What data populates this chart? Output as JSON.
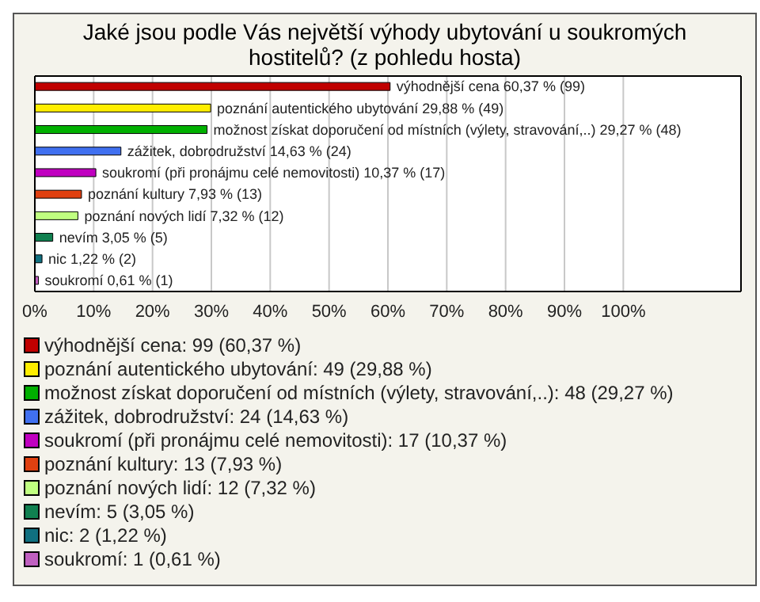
{
  "chart_data": {
    "type": "bar",
    "orientation": "horizontal",
    "stacked": true,
    "title": "Jaké jsou podle Vás největší výhody ubytování u soukromých hostitelů? (z pohledu hosta)",
    "categories": [
      null,
      null,
      null,
      null,
      null,
      null,
      null,
      null,
      null,
      null
    ],
    "series": [
      {
        "name": "výhodnější cena: 99 (60,37 %)",
        "color": "#c00000",
        "values": [
          60.37,
          null,
          null,
          null,
          null,
          null,
          null,
          null,
          null,
          null
        ],
        "value_labels": [
          "výhodnější cena 60,37 % (99)",
          null,
          null,
          null,
          null,
          null,
          null,
          null,
          null,
          null
        ]
      },
      {
        "name": "poznání autentického ubytování: 49 (29,88 %)",
        "color": "#ffee00",
        "values": [
          null,
          29.88,
          null,
          null,
          null,
          null,
          null,
          null,
          null,
          null
        ],
        "value_labels": [
          null,
          "poznání autentického ubytování 29,88 % (49)",
          null,
          null,
          null,
          null,
          null,
          null,
          null,
          null
        ]
      },
      {
        "name": "možnost získat doporučení od místních (výlety, stravování,..): 48 (29,27 %)",
        "color": "#00b000",
        "values": [
          null,
          null,
          29.27,
          null,
          null,
          null,
          null,
          null,
          null,
          null
        ],
        "value_labels": [
          null,
          null,
          "možnost získat doporučení od místních (výlety, stravování,..) 29,27 % (48)",
          null,
          null,
          null,
          null,
          null,
          null,
          null
        ]
      },
      {
        "name": "zážitek, dobrodružství: 24 (14,63 %)",
        "color": "#4070f0",
        "values": [
          null,
          null,
          null,
          14.63,
          null,
          null,
          null,
          null,
          null,
          null
        ],
        "value_labels": [
          null,
          null,
          null,
          "zážitek, dobrodružství 14,63 % (24)",
          null,
          null,
          null,
          null,
          null,
          null
        ]
      },
      {
        "name": "soukromí (při pronájmu celé nemovitosti): 17 (10,37 %)",
        "color": "#c000c0",
        "values": [
          null,
          null,
          null,
          null,
          10.37,
          null,
          null,
          null,
          null,
          null
        ],
        "value_labels": [
          null,
          null,
          null,
          null,
          "soukromí (při pronájmu celé nemovitosti) 10,37 % (17)",
          null,
          null,
          null,
          null,
          null
        ]
      },
      {
        "name": "poznání kultury: 13 (7,93 %)",
        "color": "#e04010",
        "values": [
          null,
          null,
          null,
          null,
          null,
          7.93,
          null,
          null,
          null,
          null
        ],
        "value_labels": [
          null,
          null,
          null,
          null,
          null,
          "poznání kultury 7,93 % (13)",
          null,
          null,
          null,
          null
        ]
      },
      {
        "name": "poznání nových lidí: 12 (7,32 %)",
        "color": "#c0ff80",
        "values": [
          null,
          null,
          null,
          null,
          null,
          null,
          7.32,
          null,
          null,
          null
        ],
        "value_labels": [
          null,
          null,
          null,
          null,
          null,
          null,
          "poznání nových lidí 7,32 % (12)",
          null,
          null,
          null
        ]
      },
      {
        "name": "nevím: 5 (3,05 %)",
        "color": "#108050",
        "values": [
          null,
          null,
          null,
          null,
          null,
          null,
          null,
          3.05,
          null,
          null
        ],
        "value_labels": [
          null,
          null,
          null,
          null,
          null,
          null,
          null,
          "nevím 3,05 % (5)",
          null,
          null
        ]
      },
      {
        "name": "nic: 2 (1,22 %)",
        "color": "#107080",
        "values": [
          null,
          null,
          null,
          null,
          null,
          null,
          null,
          null,
          1.22,
          null
        ],
        "value_labels": [
          null,
          null,
          null,
          null,
          null,
          null,
          null,
          null,
          "nic 1,22 % (2)",
          null
        ]
      },
      {
        "name": "soukromí: 1 (0,61 %)",
        "color": "#c060c0",
        "values": [
          null,
          null,
          null,
          null,
          null,
          null,
          null,
          null,
          null,
          0.61
        ],
        "value_labels": [
          null,
          null,
          null,
          null,
          null,
          null,
          null,
          null,
          null,
          "soukromí 0,61 % (1)"
        ]
      }
    ],
    "xlim": [
      0,
      120
    ],
    "xticks": [
      {
        "value": 0,
        "label": "0%"
      },
      {
        "value": 10,
        "label": "10%"
      },
      {
        "value": 20,
        "label": "20%"
      },
      {
        "value": 30,
        "label": "30%"
      },
      {
        "value": 40,
        "label": "40%"
      },
      {
        "value": 50,
        "label": "50%"
      },
      {
        "value": 60,
        "label": "60%"
      },
      {
        "value": 70,
        "label": "70%"
      },
      {
        "value": 80,
        "label": "80%"
      },
      {
        "value": 90,
        "label": "90%"
      },
      {
        "value": 100,
        "label": "100%"
      }
    ],
    "grid": "x",
    "legend": "bottom",
    "tick_labels": "x"
  }
}
